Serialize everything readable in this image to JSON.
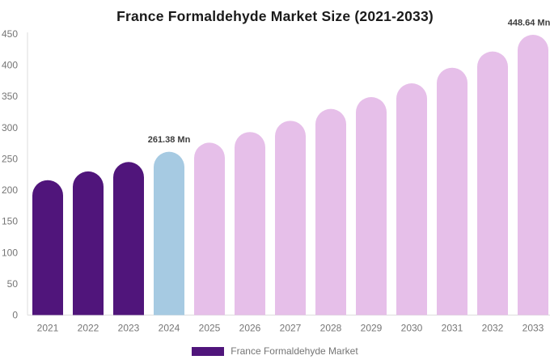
{
  "chart_data": {
    "type": "bar",
    "title": "France Formaldehyde Market Size (2021-2033)",
    "unit": "Mn",
    "categories": [
      "2021",
      "2022",
      "2023",
      "2024",
      "2025",
      "2026",
      "2027",
      "2028",
      "2029",
      "2030",
      "2031",
      "2032",
      "2033"
    ],
    "values": [
      216,
      230,
      245,
      261.38,
      276,
      293,
      311,
      330,
      349,
      371,
      396,
      422,
      448.64
    ],
    "bar_colors": [
      "#50157B",
      "#50157B",
      "#50157B",
      "#A6CAE2",
      "#E6BFE9",
      "#E6BFE9",
      "#E6BFE9",
      "#E6BFE9",
      "#E6BFE9",
      "#E6BFE9",
      "#E6BFE9",
      "#E6BFE9",
      "#E6BFE9"
    ],
    "data_labels": [
      {
        "category": "2024",
        "text": "261.38 Mn"
      },
      {
        "category": "2033",
        "text": "448.64 Mn"
      }
    ],
    "xlabel": "",
    "ylabel": "",
    "ylim": [
      0,
      450
    ],
    "y_ticks": [
      0,
      50,
      100,
      150,
      200,
      250,
      300,
      350,
      400,
      450
    ],
    "grid": false,
    "legend": {
      "position": "bottom",
      "items": [
        {
          "label": "France Formaldehyde Market",
          "color": "#50157B"
        }
      ]
    },
    "colors": {
      "title": "#1a1a1a",
      "axis_label": "#757575",
      "axis_line": "#dddddd",
      "annotation": "#3d3d3d",
      "background": "#ffffff"
    }
  }
}
